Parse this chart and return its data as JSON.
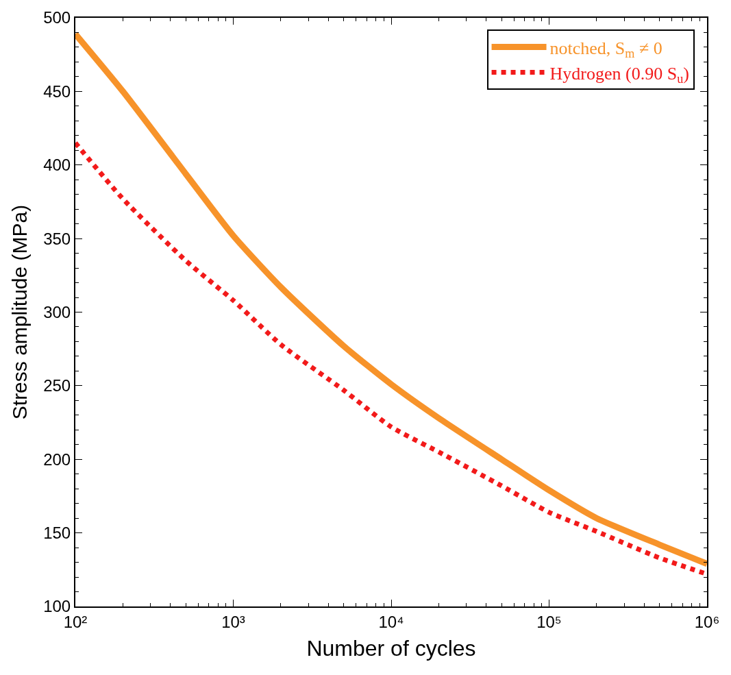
{
  "chart_data": {
    "type": "line",
    "xlabel": "Number of cycles",
    "ylabel": "Stress amplitude (MPa)",
    "log": "x",
    "xlim": [
      100,
      1000000
    ],
    "xticks": [
      {
        "value": 100,
        "label": "10²"
      },
      {
        "value": 1000,
        "label": "10³"
      },
      {
        "value": 10000,
        "label": "10⁴"
      },
      {
        "value": 100000,
        "label": "10⁵"
      },
      {
        "value": 1000000,
        "label": "10⁶"
      }
    ],
    "ylim": [
      100,
      500
    ],
    "yticks": [
      100,
      150,
      200,
      250,
      300,
      350,
      400,
      450,
      500
    ],
    "legend": "top right",
    "series": [
      {
        "name": "notched, S$_{m}$ ≠ 0",
        "color": "#f7932a",
        "line_style": "solid",
        "x": [
          100,
          200,
          500,
          1000,
          2000,
          5000,
          10000,
          20000,
          50000,
          100000,
          200000,
          500000,
          1000000
        ],
        "values": [
          489,
          450,
          394,
          352,
          317,
          277,
          251,
          228,
          200,
          179,
          160,
          142,
          129
        ]
      },
      {
        "name": "Hydrogen (0.90 S$_{u}$)",
        "color": "#f21a1a",
        "line_style": "dotted",
        "x": [
          100,
          200,
          500,
          1000,
          2000,
          5000,
          10000,
          20000,
          50000,
          100000,
          200000,
          500000,
          1000000
        ],
        "values": [
          415,
          377,
          335,
          308,
          278,
          247,
          222,
          205,
          182,
          164,
          151,
          133,
          122
        ]
      }
    ]
  }
}
